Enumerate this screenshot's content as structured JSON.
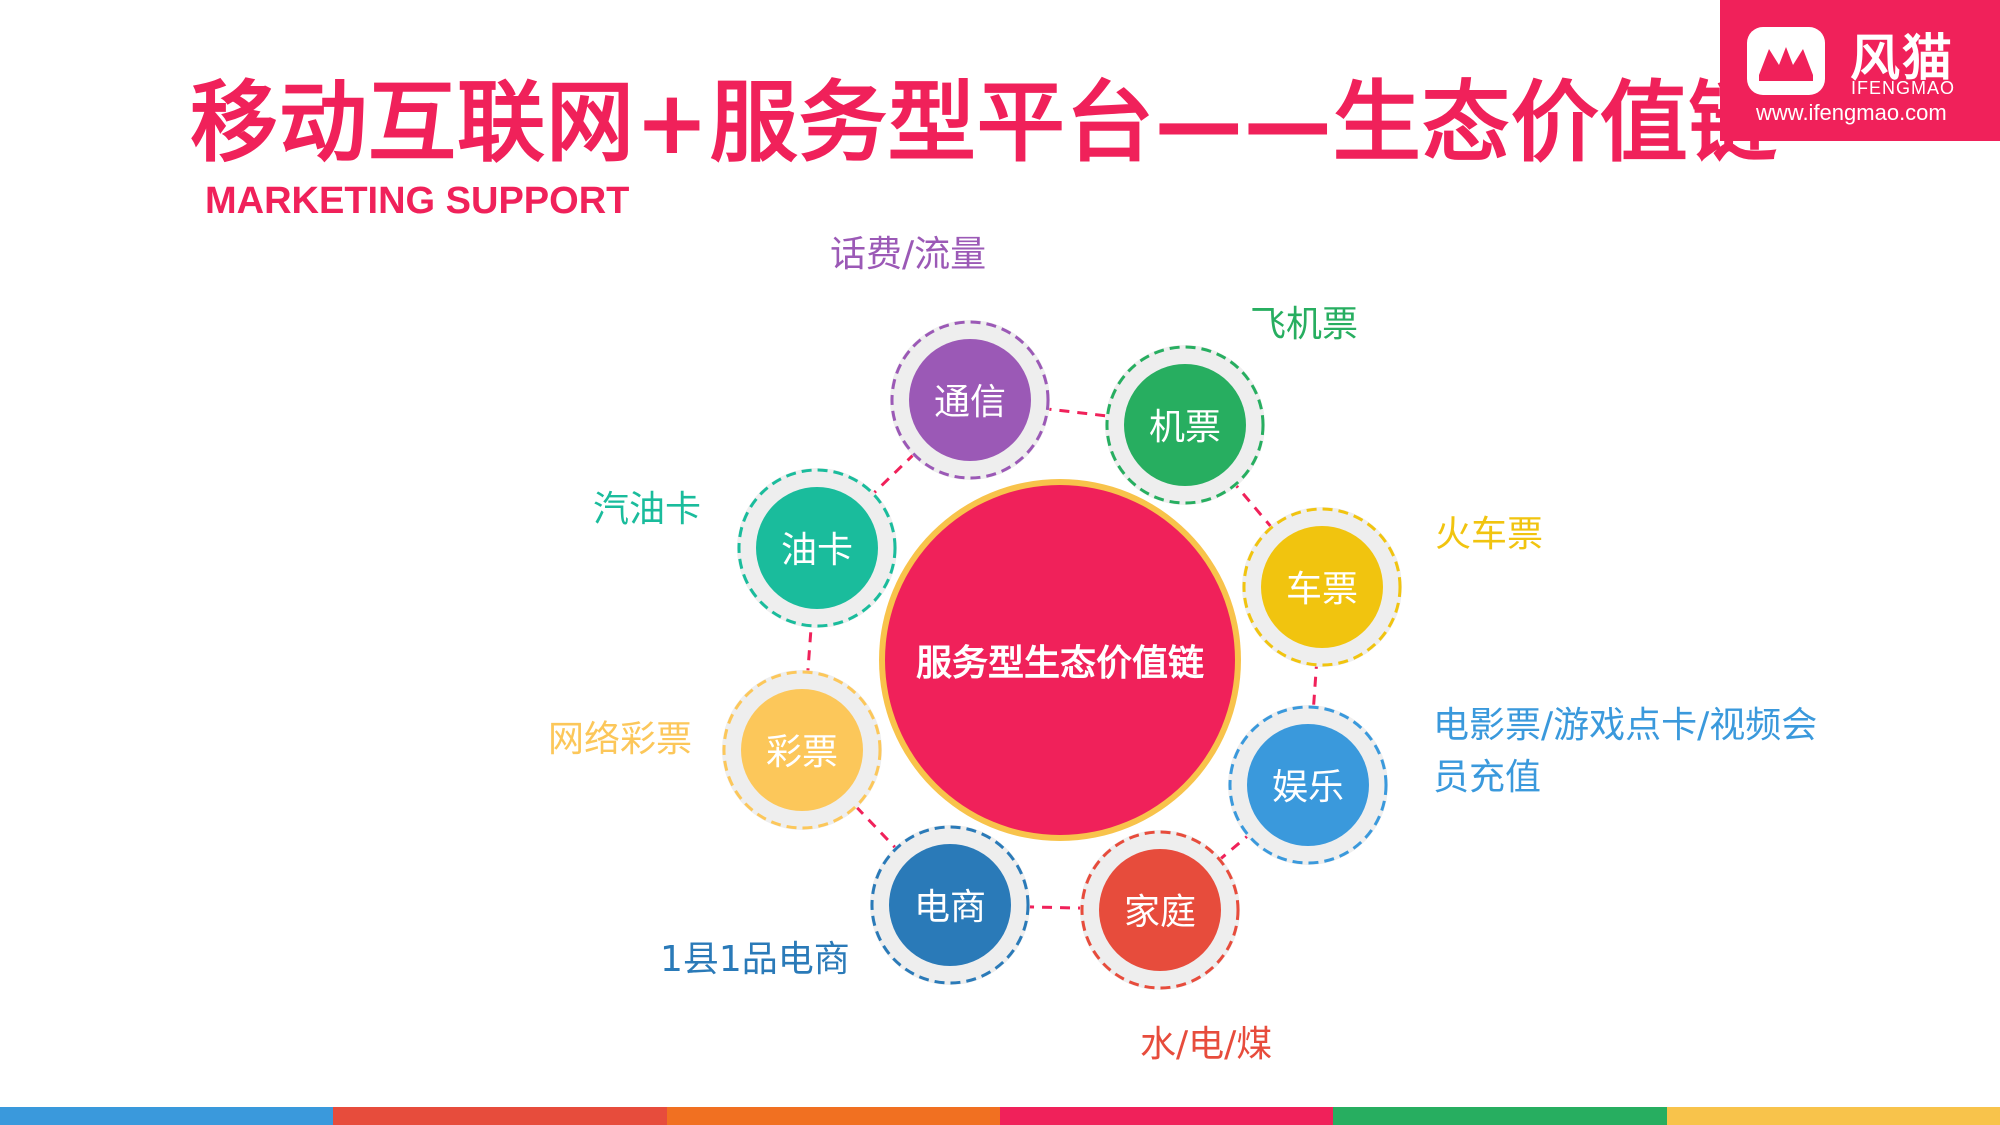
{
  "title": "移动互联网+服务型平台——生态价值链",
  "subtitle": "MARKETING SUPPORT",
  "logo": {
    "name": "风猫",
    "sub": "IFENGMAO",
    "url": "www.ifengmao.com"
  },
  "colors": {
    "accent": "#f0215a",
    "center_ring": "#f8c34b"
  },
  "center": {
    "label": "服务型生态价值链",
    "color": "#f0215a"
  },
  "nodes": [
    {
      "label": "通信",
      "color": "#9b59b6",
      "external": "话费/流量"
    },
    {
      "label": "机票",
      "color": "#27ae60",
      "external": "飞机票"
    },
    {
      "label": "车票",
      "color": "#f1c40f",
      "external": "火车票"
    },
    {
      "label": "娱乐",
      "color": "#3a99dc",
      "external": "电影票/游戏点卡/视频会员充值"
    },
    {
      "label": "家庭",
      "color": "#e74c3c",
      "external": "水/电/煤"
    },
    {
      "label": "电商",
      "color": "#2a7ab8",
      "external": "1县1品电商"
    },
    {
      "label": "彩票",
      "color": "#fcc75a",
      "external": "网络彩票"
    },
    {
      "label": "油卡",
      "color": "#1abc9c",
      "external": "汽油卡"
    }
  ],
  "bottom_bar": [
    "#3a99dc",
    "#e74c3c",
    "#f17021",
    "#f0215a",
    "#27ae60",
    "#f8c34b"
  ]
}
